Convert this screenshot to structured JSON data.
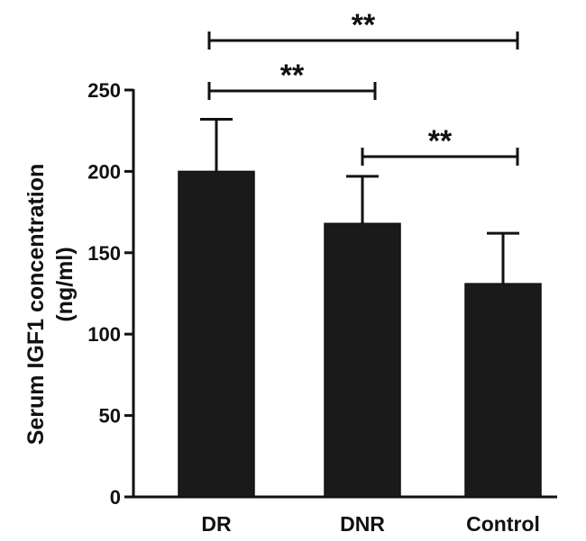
{
  "chart_data": {
    "type": "bar",
    "title": "",
    "categories": [
      "DR",
      "DNR",
      "Control"
    ],
    "values": [
      200,
      168,
      131
    ],
    "errors": [
      32,
      29,
      31
    ],
    "ylabel": "Serum IGF1 concentration",
    "ylabel_unit": "(ng/ml)",
    "xlabel": "",
    "ylim": [
      0,
      250
    ],
    "yticks": [
      0,
      50,
      100,
      150,
      200,
      250
    ],
    "grid": false,
    "bar_color": "#1a1a1a",
    "significance": [
      {
        "from": "DR",
        "to": "Control",
        "label": "**"
      },
      {
        "from": "DR",
        "to": "DNR",
        "label": "**"
      },
      {
        "from": "DNR",
        "to": "Control",
        "label": "**"
      }
    ]
  }
}
